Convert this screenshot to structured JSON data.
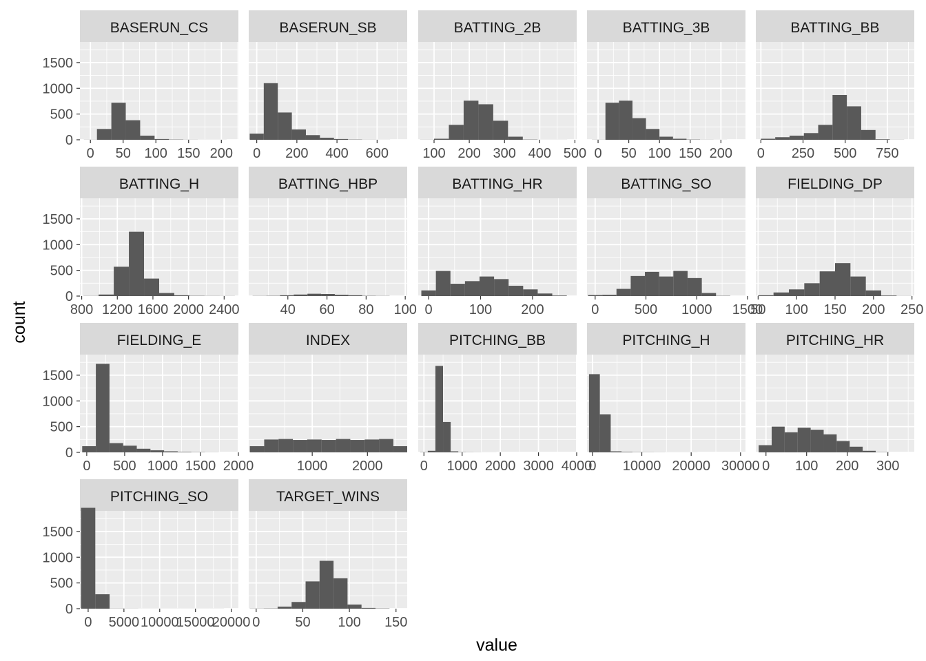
{
  "chart_data": {
    "type": "bar",
    "subtype": "faceted-histogram",
    "xlabel": "value",
    "ylabel": "count",
    "layout": {
      "rows": 4,
      "cols": 5
    },
    "y_axis": {
      "ylim": [
        0,
        1900
      ],
      "ticks": [
        0,
        500,
        1000,
        1500
      ],
      "tick_labels": [
        "0",
        "500",
        "1000",
        "1500"
      ]
    },
    "colors": {
      "bar": "#595959",
      "panel": "#ebebeb",
      "strip": "#d9d9d9",
      "grid": "#ffffff",
      "tick_label": "#4d4d4d",
      "tick": "#333333"
    },
    "panels": [
      {
        "name": "BASERUN_CS",
        "xlim": [
          -16,
          226
        ],
        "xticks": [
          0,
          50,
          100,
          150,
          200
        ],
        "xtick_labels": [
          "0",
          "50",
          "100",
          "150",
          "200"
        ],
        "bins": [
          [
            -10,
            10,
            2
          ],
          [
            10,
            32,
            210
          ],
          [
            32,
            54,
            720
          ],
          [
            54,
            76,
            380
          ],
          [
            76,
            98,
            80
          ],
          [
            98,
            120,
            15
          ],
          [
            120,
            142,
            5
          ],
          [
            142,
            164,
            2
          ],
          [
            164,
            186,
            1
          ],
          [
            186,
            208,
            1
          ]
        ]
      },
      {
        "name": "BASERUN_SB",
        "xlim": [
          -40,
          750
        ],
        "xticks": [
          0,
          200,
          400,
          600
        ],
        "xtick_labels": [
          "0",
          "200",
          "400",
          "600"
        ],
        "bins": [
          [
            -35,
            35,
            120
          ],
          [
            35,
            105,
            1100
          ],
          [
            105,
            175,
            530
          ],
          [
            175,
            245,
            200
          ],
          [
            245,
            315,
            90
          ],
          [
            315,
            385,
            40
          ],
          [
            385,
            455,
            15
          ],
          [
            455,
            525,
            5
          ],
          [
            525,
            595,
            2
          ],
          [
            595,
            665,
            1
          ]
        ]
      },
      {
        "name": "BATTING_2B",
        "xlim": [
          55,
          505
        ],
        "xticks": [
          100,
          200,
          300,
          400,
          500
        ],
        "xtick_labels": [
          "100",
          "200",
          "300",
          "400",
          "500"
        ],
        "bins": [
          [
            60,
            100,
            2
          ],
          [
            100,
            142,
            20
          ],
          [
            142,
            184,
            290
          ],
          [
            184,
            226,
            760
          ],
          [
            226,
            268,
            690
          ],
          [
            268,
            310,
            370
          ],
          [
            310,
            352,
            60
          ],
          [
            352,
            394,
            5
          ],
          [
            394,
            436,
            1
          ],
          [
            436,
            478,
            1
          ]
        ]
      },
      {
        "name": "BATTING_3B",
        "xlim": [
          -18,
          240
        ],
        "xticks": [
          0,
          50,
          100,
          150,
          200
        ],
        "xtick_labels": [
          "0",
          "50",
          "100",
          "150",
          "200"
        ],
        "bins": [
          [
            -10,
            12,
            2
          ],
          [
            12,
            34,
            720
          ],
          [
            34,
            56,
            760
          ],
          [
            56,
            78,
            420
          ],
          [
            78,
            100,
            210
          ],
          [
            100,
            122,
            60
          ],
          [
            122,
            144,
            20
          ],
          [
            144,
            166,
            5
          ],
          [
            166,
            188,
            2
          ],
          [
            188,
            210,
            1
          ]
        ]
      },
      {
        "name": "BATTING_BB",
        "xlim": [
          -30,
          910
        ],
        "xticks": [
          0,
          250,
          500,
          750
        ],
        "xtick_labels": [
          "0",
          "250",
          "500",
          "750"
        ],
        "bins": [
          [
            0,
            85,
            20
          ],
          [
            85,
            170,
            50
          ],
          [
            170,
            255,
            80
          ],
          [
            255,
            340,
            130
          ],
          [
            340,
            425,
            290
          ],
          [
            425,
            510,
            870
          ],
          [
            510,
            595,
            650
          ],
          [
            595,
            680,
            190
          ],
          [
            680,
            765,
            10
          ],
          [
            765,
            850,
            2
          ]
        ]
      },
      {
        "name": "BATTING_H",
        "xlim": [
          780,
          2560
        ],
        "xticks": [
          800,
          1200,
          1600,
          2000,
          2400
        ],
        "xtick_labels": [
          "800",
          "1200",
          "1600",
          "2000",
          "2400"
        ],
        "bins": [
          [
            820,
            990,
            3
          ],
          [
            990,
            1160,
            30
          ],
          [
            1160,
            1330,
            570
          ],
          [
            1330,
            1500,
            1250
          ],
          [
            1500,
            1670,
            340
          ],
          [
            1670,
            1840,
            60
          ],
          [
            1840,
            2010,
            15
          ],
          [
            2010,
            2180,
            5
          ],
          [
            2180,
            2350,
            3
          ],
          [
            2350,
            2520,
            2
          ]
        ]
      },
      {
        "name": "BATTING_HBP",
        "xlim": [
          20,
          101
        ],
        "xticks": [
          40,
          60,
          80,
          100
        ],
        "xtick_labels": [
          "40",
          "60",
          "80",
          "100"
        ],
        "bins": [
          [
            22,
            29,
            3
          ],
          [
            29,
            36,
            5
          ],
          [
            36,
            43,
            15
          ],
          [
            43,
            50,
            30
          ],
          [
            50,
            57,
            45
          ],
          [
            57,
            64,
            40
          ],
          [
            64,
            71,
            25
          ],
          [
            71,
            78,
            15
          ],
          [
            78,
            85,
            5
          ],
          [
            85,
            92,
            3
          ]
        ]
      },
      {
        "name": "BATTING_HR",
        "xlim": [
          -20,
          285
        ],
        "xticks": [
          0,
          100,
          200
        ],
        "xtick_labels": [
          "0",
          "100",
          "200"
        ],
        "bins": [
          [
            -14,
            14,
            110
          ],
          [
            14,
            42,
            490
          ],
          [
            42,
            70,
            240
          ],
          [
            70,
            98,
            290
          ],
          [
            98,
            126,
            380
          ],
          [
            126,
            154,
            330
          ],
          [
            154,
            182,
            200
          ],
          [
            182,
            210,
            130
          ],
          [
            210,
            238,
            50
          ],
          [
            238,
            266,
            10
          ]
        ]
      },
      {
        "name": "BATTING_SO",
        "xlim": [
          -80,
          1480
        ],
        "xticks": [
          0,
          500,
          1000,
          1500
        ],
        "xtick_labels": [
          "0",
          "500",
          "1000",
          "1500"
        ],
        "bins": [
          [
            -70,
            70,
            20
          ],
          [
            70,
            210,
            25
          ],
          [
            210,
            350,
            140
          ],
          [
            350,
            490,
            390
          ],
          [
            490,
            630,
            470
          ],
          [
            630,
            770,
            380
          ],
          [
            770,
            910,
            490
          ],
          [
            910,
            1050,
            350
          ],
          [
            1050,
            1190,
            60
          ],
          [
            1190,
            1330,
            5
          ]
        ]
      },
      {
        "name": "FIELDING_DP",
        "xlim": [
          47,
          253
        ],
        "xticks": [
          50,
          100,
          150,
          200,
          250
        ],
        "xtick_labels": [
          "50",
          "100",
          "150",
          "200",
          "250"
        ],
        "bins": [
          [
            50,
            70,
            15
          ],
          [
            70,
            90,
            70
          ],
          [
            90,
            110,
            130
          ],
          [
            110,
            130,
            250
          ],
          [
            130,
            150,
            480
          ],
          [
            150,
            170,
            640
          ],
          [
            170,
            190,
            380
          ],
          [
            190,
            210,
            110
          ],
          [
            210,
            230,
            10
          ],
          [
            230,
            250,
            2
          ]
        ]
      },
      {
        "name": "FIELDING_E",
        "xlim": [
          -90,
          2000
        ],
        "xticks": [
          0,
          500,
          1000,
          1500,
          2000
        ],
        "xtick_labels": [
          "0",
          "500",
          "1000",
          "1500",
          "2000"
        ],
        "bins": [
          [
            -60,
            120,
            120
          ],
          [
            120,
            300,
            1720
          ],
          [
            300,
            480,
            180
          ],
          [
            480,
            660,
            130
          ],
          [
            660,
            840,
            70
          ],
          [
            840,
            1020,
            40
          ],
          [
            1020,
            1200,
            20
          ],
          [
            1200,
            1380,
            10
          ],
          [
            1380,
            1560,
            5
          ],
          [
            1560,
            1740,
            2
          ]
        ]
      },
      {
        "name": "INDEX",
        "xlim": [
          -150,
          2720
        ],
        "xticks": [
          1000,
          2000
        ],
        "xtick_labels": [
          "1000",
          "2000"
        ],
        "bins": [
          [
            -130,
            130,
            120
          ],
          [
            130,
            390,
            250
          ],
          [
            390,
            650,
            260
          ],
          [
            650,
            910,
            240
          ],
          [
            910,
            1170,
            250
          ],
          [
            1170,
            1430,
            240
          ],
          [
            1430,
            1690,
            260
          ],
          [
            1690,
            1950,
            240
          ],
          [
            1950,
            2210,
            250
          ],
          [
            2210,
            2470,
            260
          ],
          [
            2470,
            2730,
            120
          ]
        ]
      },
      {
        "name": "PITCHING_BB",
        "xlim": [
          -150,
          4000
        ],
        "xticks": [
          0,
          1000,
          2000,
          3000,
          4000
        ],
        "xtick_labels": [
          "0",
          "1000",
          "2000",
          "3000",
          "4000"
        ],
        "bins": [
          [
            -100,
            100,
            5
          ],
          [
            100,
            300,
            30
          ],
          [
            300,
            500,
            1680
          ],
          [
            500,
            700,
            590
          ],
          [
            700,
            900,
            20
          ],
          [
            900,
            1100,
            5
          ],
          [
            1100,
            1300,
            3
          ],
          [
            1300,
            1500,
            2
          ],
          [
            1500,
            1700,
            1
          ],
          [
            1700,
            1900,
            1
          ]
        ]
      },
      {
        "name": "PITCHING_H",
        "xlim": [
          -1100,
          31000
        ],
        "xticks": [
          0,
          10000,
          20000,
          30000
        ],
        "xtick_labels": [
          "0",
          "10000",
          "20000",
          "30000"
        ],
        "bins": [
          [
            -700,
            1500,
            1520
          ],
          [
            1500,
            3700,
            740
          ],
          [
            3700,
            5900,
            20
          ],
          [
            5900,
            8100,
            10
          ],
          [
            8100,
            10300,
            5
          ],
          [
            10300,
            12500,
            3
          ],
          [
            12500,
            14700,
            2
          ],
          [
            14700,
            16900,
            1
          ],
          [
            16900,
            19100,
            1
          ],
          [
            19100,
            21300,
            1
          ]
        ]
      },
      {
        "name": "PITCHING_HR",
        "xlim": [
          -25,
          365
        ],
        "xticks": [
          0,
          100,
          200,
          300
        ],
        "xtick_labels": [
          "0",
          "100",
          "200",
          "300"
        ],
        "bins": [
          [
            -18,
            14,
            140
          ],
          [
            14,
            46,
            500
          ],
          [
            46,
            78,
            390
          ],
          [
            78,
            110,
            480
          ],
          [
            110,
            142,
            440
          ],
          [
            142,
            174,
            350
          ],
          [
            174,
            206,
            220
          ],
          [
            206,
            238,
            110
          ],
          [
            238,
            270,
            30
          ],
          [
            270,
            302,
            5
          ]
        ]
      },
      {
        "name": "PITCHING_SO",
        "xlim": [
          -1150,
          21000
        ],
        "xticks": [
          0,
          5000,
          10000,
          15000,
          20000
        ],
        "xtick_labels": [
          "0",
          "5000",
          "10000",
          "15000",
          "20000"
        ],
        "bins": [
          [
            -1000,
            1000,
            1960
          ],
          [
            1000,
            3000,
            280
          ],
          [
            3000,
            5000,
            3
          ],
          [
            5000,
            7000,
            2
          ],
          [
            7000,
            9000,
            1
          ],
          [
            9000,
            11000,
            1
          ],
          [
            11000,
            13000,
            1
          ],
          [
            13000,
            15000,
            1
          ],
          [
            15000,
            17000,
            1
          ],
          [
            17000,
            19000,
            1
          ]
        ]
      },
      {
        "name": "TARGET_WINS",
        "xlim": [
          -8,
          162
        ],
        "xticks": [
          0,
          50,
          100,
          150
        ],
        "xtick_labels": [
          "0",
          "50",
          "100",
          "150"
        ],
        "bins": [
          [
            -7,
            8,
            3
          ],
          [
            8,
            23,
            5
          ],
          [
            23,
            38,
            40
          ],
          [
            38,
            53,
            130
          ],
          [
            53,
            68,
            530
          ],
          [
            68,
            83,
            930
          ],
          [
            83,
            98,
            590
          ],
          [
            98,
            113,
            80
          ],
          [
            113,
            128,
            15
          ],
          [
            128,
            143,
            5
          ]
        ]
      }
    ]
  }
}
